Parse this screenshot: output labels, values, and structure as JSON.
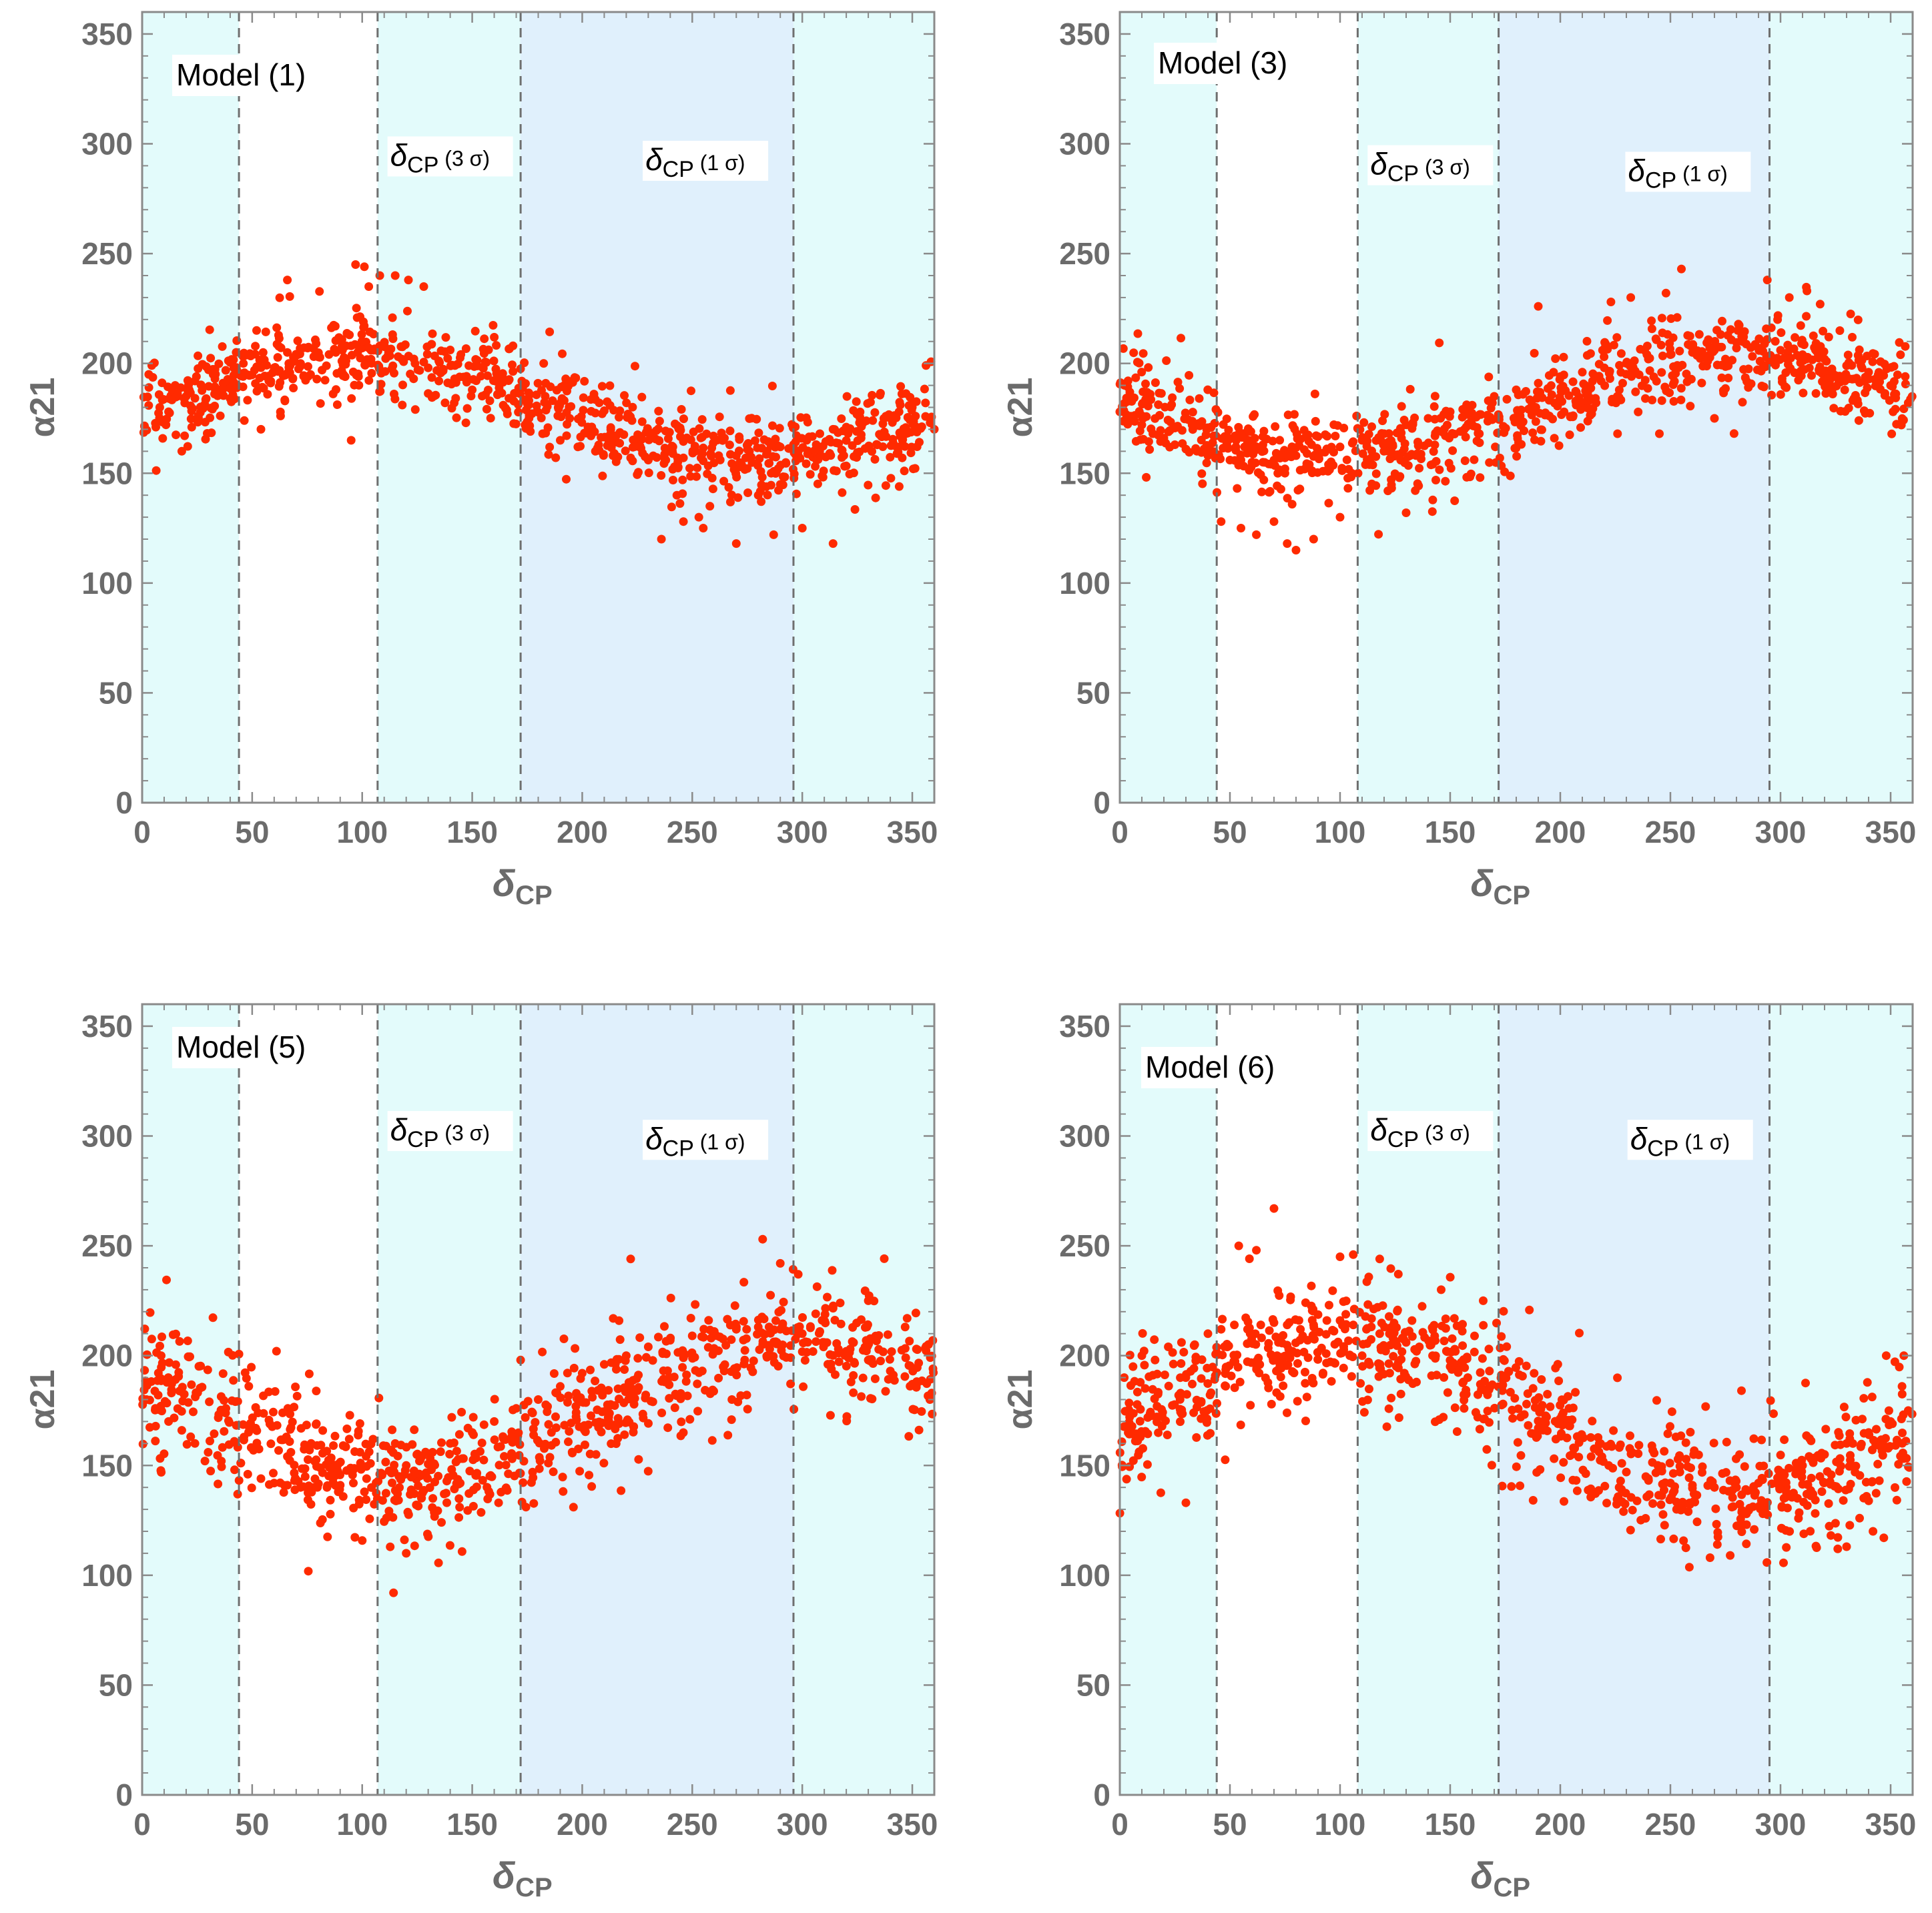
{
  "colors": {
    "band_3sigma": "#e3fbfb",
    "band_1sigma": "#e0f0fc",
    "points": "#ff2a00",
    "axis": "#8a8a8a",
    "tick_text": "#6b6b6b",
    "divider": "#6f6f6f"
  },
  "chart_data": [
    {
      "type": "scatter",
      "title": "Model (1)",
      "xlabel": "δ_CP",
      "ylabel": "α21",
      "xlim": [
        0,
        360
      ],
      "ylim": [
        0,
        360
      ],
      "xticks": [
        "0",
        "50",
        "100",
        "150",
        "200",
        "250",
        "300",
        "350"
      ],
      "yticks": [
        "0",
        "50",
        "100",
        "150",
        "200",
        "250",
        "300",
        "350"
      ],
      "grid": false,
      "regions": {
        "sigma3": [
          [
            0,
            44
          ],
          [
            107,
            360
          ]
        ],
        "sigma1": [
          [
            172,
            296
          ]
        ],
        "dividers": [
          44,
          107,
          172,
          296
        ]
      },
      "annotations": [
        {
          "text": "δCP (3 σ)",
          "x": 140,
          "y": 290
        },
        {
          "text": "δCP (1 σ)",
          "x": 256,
          "y": 288
        }
      ],
      "series": [
        {
          "trend": {
            "center": 180,
            "amplitude": 23,
            "peak_at": 100,
            "spread": 10
          },
          "x": [
            3,
            8,
            12,
            15,
            20,
            24,
            28,
            35,
            40,
            46,
            52,
            55,
            60,
            66,
            72,
            80,
            88,
            95,
            100,
            104,
            108,
            112,
            118,
            124,
            130,
            136,
            142,
            150,
            158,
            166,
            174,
            182,
            190,
            198,
            206,
            214,
            222,
            230,
            238,
            246,
            254,
            262,
            270,
            276,
            284,
            290,
            296,
            302,
            308,
            314,
            320,
            326,
            332,
            338,
            344,
            350,
            356,
            360,
            95,
            97,
            101,
            103,
            108,
            115,
            121,
            128,
            54,
            66,
            18,
            236,
            246,
            255,
            270,
            314,
            287,
            300,
            243,
            253,
            258,
            280
          ],
          "y": [
            195,
            180,
            178,
            190,
            185,
            192,
            180,
            188,
            184,
            200,
            215,
            205,
            198,
            205,
            200,
            203,
            205,
            208,
            207,
            206,
            208,
            205,
            202,
            200,
            198,
            196,
            193,
            188,
            183,
            177,
            172,
            168,
            165,
            162,
            160,
            158,
            157,
            156,
            156,
            157,
            157,
            158,
            158,
            160,
            160,
            162,
            163,
            165,
            168,
            170,
            171,
            173,
            174,
            176,
            178,
            180,
            182,
            170,
            165,
            245,
            244,
            235,
            240,
            240,
            238,
            235,
            170,
            238,
            160,
            120,
            128,
            125,
            118,
            118,
            122,
            125,
            140,
            130,
            135,
            140
          ]
        }
      ]
    },
    {
      "type": "scatter",
      "title": "Model (3)",
      "xlabel": "δ_CP",
      "ylabel": "α21",
      "xlim": [
        0,
        360
      ],
      "ylim": [
        0,
        360
      ],
      "xticks": [
        "0",
        "50",
        "100",
        "150",
        "200",
        "250",
        "300",
        "350"
      ],
      "yticks": [
        "0",
        "50",
        "100",
        "150",
        "200",
        "250",
        "300",
        "350"
      ],
      "grid": false,
      "regions": {
        "sigma3": [
          [
            0,
            44
          ],
          [
            108,
            360
          ]
        ],
        "sigma1": [
          [
            172,
            295
          ]
        ],
        "dividers": [
          44,
          108,
          172,
          295
        ]
      },
      "annotations": [
        {
          "text": "δCP (3 σ)",
          "x": 141,
          "y": 286
        },
        {
          "text": "δCP (1 σ)",
          "x": 258,
          "y": 283
        }
      ],
      "series": [
        {
          "trend": {
            "center": 180,
            "amplitude": 23,
            "peak_at": 280,
            "spread": 10
          },
          "x": [
            0,
            5,
            10,
            15,
            20,
            25,
            30,
            35,
            40,
            45,
            50,
            55,
            60,
            65,
            70,
            75,
            80,
            85,
            90,
            95,
            100,
            110,
            120,
            130,
            140,
            150,
            160,
            170,
            180,
            190,
            200,
            210,
            220,
            230,
            240,
            250,
            260,
            270,
            280,
            290,
            300,
            310,
            320,
            330,
            340,
            350,
            358,
            46,
            55,
            62,
            70,
            76,
            80,
            88,
            100,
            130,
            190,
            223,
            255,
            232,
            248,
            294,
            304,
            312,
            318,
            270,
            226,
            245
          ],
          "y": [
            178,
            176,
            172,
            168,
            166,
            163,
            161,
            160,
            158,
            157,
            156,
            156,
            155,
            155,
            156,
            157,
            158,
            159,
            160,
            161,
            162,
            165,
            168,
            172,
            175,
            178,
            181,
            185,
            188,
            191,
            194,
            196,
            198,
            200,
            202,
            204,
            205,
            206,
            207,
            207,
            206,
            204,
            202,
            199,
            196,
            190,
            182,
            128,
            125,
            122,
            128,
            118,
            115,
            120,
            130,
            132,
            226,
            228,
            243,
            230,
            232,
            238,
            230,
            233,
            227,
            175,
            168,
            168
          ]
        }
      ]
    },
    {
      "type": "scatter",
      "title": "Model (5)",
      "xlabel": "δ_CP",
      "ylabel": "α21",
      "xlim": [
        0,
        360
      ],
      "ylim": [
        0,
        360
      ],
      "xticks": [
        "0",
        "50",
        "100",
        "150",
        "200",
        "250",
        "300",
        "350"
      ],
      "yticks": [
        "0",
        "50",
        "100",
        "150",
        "200",
        "250",
        "300",
        "350"
      ],
      "grid": false,
      "regions": {
        "sigma3": [
          [
            0,
            44
          ],
          [
            107,
            360
          ]
        ],
        "sigma1": [
          [
            172,
            296
          ]
        ],
        "dividers": [
          44,
          107,
          172,
          296
        ]
      },
      "annotations": [
        {
          "text": "δCP (3 σ)",
          "x": 140,
          "y": 298
        },
        {
          "text": "δCP (1 σ)",
          "x": 256,
          "y": 294
        }
      ],
      "series": [
        {
          "trend": {
            "center": 175,
            "amplitude": 33,
            "peak_at": 300,
            "spread": 14
          },
          "x": [
            2,
            6,
            12,
            18,
            24,
            30,
            36,
            42,
            48,
            54,
            60,
            66,
            72,
            78,
            84,
            90,
            96,
            102,
            108,
            114,
            120,
            126,
            132,
            140,
            150,
            160,
            170,
            180,
            190,
            200,
            210,
            220,
            230,
            240,
            250,
            260,
            270,
            280,
            290,
            300,
            310,
            320,
            330,
            340,
            350,
            358,
            120,
            196,
            222,
            282,
            290,
            268,
            330,
            162,
            172
          ],
          "y": [
            180,
            176,
            170,
            166,
            160,
            156,
            152,
            148,
            146,
            144,
            142,
            141,
            140,
            140,
            140,
            141,
            142,
            144,
            146,
            148,
            150,
            152,
            156,
            160,
            165,
            170,
            176,
            180,
            186,
            192,
            196,
            200,
            204,
            207,
            209,
            211,
            212,
            213,
            212,
            210,
            206,
            202,
            198,
            193,
            187,
            180,
            110,
            131,
            244,
            253,
            242,
            180,
            225,
            133,
            198
          ]
        }
      ]
    },
    {
      "type": "scatter",
      "title": "Model (6)",
      "xlabel": "δ_CP",
      "ylabel": "α21",
      "xlim": [
        0,
        360
      ],
      "ylim": [
        0,
        360
      ],
      "xticks": [
        "0",
        "50",
        "100",
        "150",
        "200",
        "250",
        "300",
        "350"
      ],
      "yticks": [
        "0",
        "50",
        "100",
        "150",
        "200",
        "250",
        "300",
        "350"
      ],
      "grid": false,
      "regions": {
        "sigma3": [
          [
            0,
            44
          ],
          [
            108,
            360
          ]
        ],
        "sigma1": [
          [
            172,
            295
          ]
        ],
        "dividers": [
          44,
          108,
          172,
          295
        ]
      },
      "annotations": [
        {
          "text": "δCP (3 σ)",
          "x": 141,
          "y": 298
        },
        {
          "text": "δCP (1 σ)",
          "x": 259,
          "y": 294
        }
      ],
      "series": [
        {
          "trend": {
            "center": 172,
            "amplitude": 36,
            "peak_at": 100,
            "spread": 14
          },
          "x": [
            2,
            6,
            10,
            16,
            22,
            28,
            34,
            40,
            46,
            52,
            58,
            64,
            70,
            76,
            82,
            88,
            94,
            100,
            106,
            112,
            118,
            124,
            130,
            136,
            142,
            150,
            158,
            166,
            174,
            182,
            190,
            198,
            206,
            214,
            222,
            230,
            240,
            250,
            260,
            270,
            280,
            290,
            300,
            310,
            320,
            330,
            340,
            350,
            358,
            30,
            70,
            54,
            62,
            100,
            106,
            118,
            268,
            330,
            348,
            356,
            326,
            342
          ],
          "y": [
            190,
            195,
            200,
            198,
            204,
            206,
            205,
            210,
            212,
            214,
            212,
            214,
            215,
            214,
            212,
            214,
            216,
            216,
            214,
            212,
            210,
            208,
            206,
            204,
            200,
            195,
            190,
            184,
            178,
            172,
            167,
            162,
            158,
            154,
            150,
            147,
            144,
            142,
            141,
            140,
            140,
            142,
            145,
            150,
            155,
            160,
            165,
            170,
            175,
            133,
            267,
            250,
            248,
            245,
            246,
            244,
            108,
            113,
            200,
            200,
            112,
            120
          ]
        }
      ]
    }
  ]
}
